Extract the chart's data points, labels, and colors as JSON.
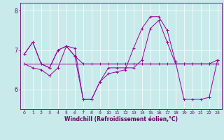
{
  "xlabel": "Windchill (Refroidissement éolien,°C)",
  "bg_color": "#c8eaea",
  "line_color": "#990099",
  "grid_color": "#ffffff",
  "x_hours": [
    0,
    1,
    2,
    3,
    4,
    5,
    6,
    7,
    8,
    9,
    10,
    11,
    12,
    13,
    14,
    15,
    16,
    17,
    18,
    19,
    20,
    21,
    22,
    23
  ],
  "line1_y": [
    6.9,
    7.2,
    6.65,
    6.55,
    7.0,
    7.1,
    6.85,
    6.65,
    6.65,
    6.65,
    6.65,
    6.65,
    6.65,
    6.65,
    6.65,
    6.65,
    6.65,
    6.65,
    6.65,
    6.65,
    6.65,
    6.65,
    6.65,
    6.75
  ],
  "line2_y": [
    6.65,
    6.55,
    6.5,
    6.35,
    6.55,
    7.1,
    7.05,
    5.75,
    5.75,
    6.2,
    6.55,
    6.55,
    6.55,
    6.55,
    6.75,
    7.55,
    7.75,
    7.2,
    6.65,
    6.65,
    6.65,
    6.65,
    6.65,
    6.65
  ],
  "line3_y": [
    6.65,
    6.65,
    6.65,
    6.65,
    6.65,
    6.65,
    6.65,
    6.65,
    6.65,
    6.65,
    6.65,
    6.65,
    6.65,
    6.65,
    6.65,
    6.65,
    6.65,
    6.65,
    6.65,
    6.65,
    6.65,
    6.65,
    6.65,
    6.65
  ],
  "line4_y": [
    6.9,
    7.2,
    6.65,
    6.55,
    7.0,
    7.1,
    6.85,
    5.75,
    5.75,
    6.2,
    6.4,
    6.45,
    6.5,
    7.05,
    7.55,
    7.85,
    7.85,
    7.5,
    6.7,
    5.75,
    5.75,
    5.75,
    5.8,
    6.75
  ],
  "ylim": [
    5.5,
    8.2
  ],
  "yticks": [
    6,
    7,
    8
  ],
  "xticks": [
    0,
    1,
    2,
    3,
    4,
    5,
    6,
    7,
    8,
    9,
    10,
    11,
    12,
    13,
    14,
    15,
    16,
    17,
    18,
    19,
    20,
    21,
    22,
    23
  ],
  "tick_fontsize": 4.5,
  "xlabel_fontsize": 5.5,
  "ytick_fontsize": 5.5,
  "axis_color": "#660066",
  "spine_color": "#660066"
}
